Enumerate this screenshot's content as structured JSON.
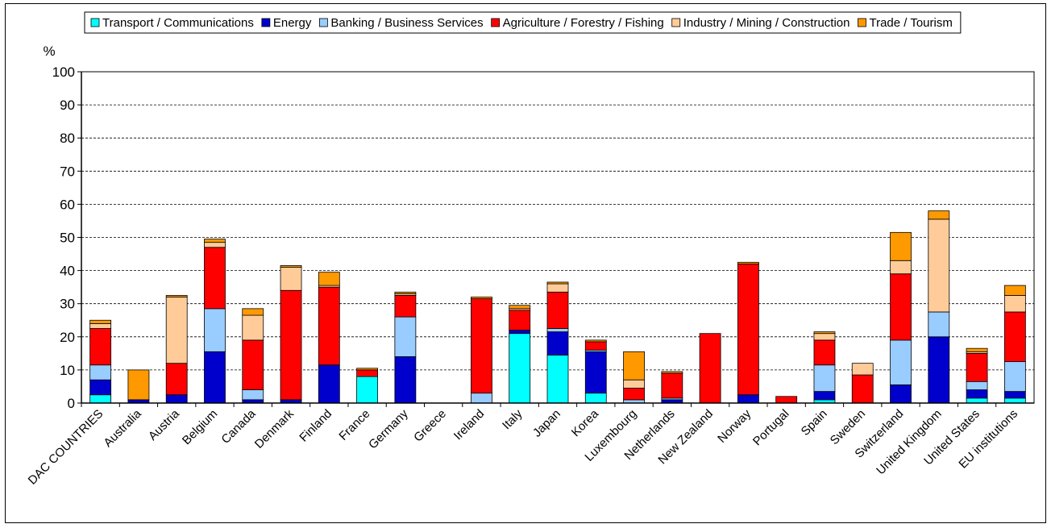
{
  "chart_data": {
    "type": "bar",
    "stacked": true,
    "title": "",
    "xlabel": "",
    "ylabel": "%",
    "ylim": [
      0,
      100
    ],
    "yticks": [
      0,
      10,
      20,
      30,
      40,
      50,
      60,
      70,
      80,
      90,
      100
    ],
    "grid": true,
    "legend_position": "top",
    "categories": [
      "DAC COUNTRIES",
      "Australia",
      "Austria",
      "Belgium",
      "Canada",
      "Denmark",
      "Finland",
      "France",
      "Germany",
      "Greece",
      "Ireland",
      "Italy",
      "Japan",
      "Korea",
      "Luxembourg",
      "Netherlands",
      "New Zealand",
      "Norway",
      "Portugal",
      "Spain",
      "Sweden",
      "Switzerland",
      "United Kingdom",
      "United States",
      "EU institutions"
    ],
    "series": [
      {
        "name": "Transport / Communications",
        "color": "#00FFFF",
        "values": [
          2.5,
          0,
          0,
          0,
          0,
          0,
          0,
          8,
          0,
          0,
          0,
          21,
          14.5,
          3,
          0,
          0,
          0,
          0,
          0,
          1,
          0,
          0,
          0,
          1.5,
          1.5
        ]
      },
      {
        "name": "Energy",
        "color": "#0000CC",
        "values": [
          4.5,
          1,
          2.5,
          15.5,
          1,
          1,
          11.5,
          0,
          14,
          0,
          0,
          1,
          7,
          12.5,
          0,
          1,
          0,
          2.5,
          0,
          2.5,
          0,
          5.5,
          20,
          2.5,
          2
        ]
      },
      {
        "name": "Banking / Business Services",
        "color": "#99CCFF",
        "values": [
          4.5,
          0,
          0,
          13,
          3,
          0,
          0,
          0,
          12,
          0,
          3,
          0,
          1,
          0.5,
          1,
          0.5,
          0,
          0,
          0,
          8,
          0,
          13.5,
          7.5,
          2.5,
          9
        ]
      },
      {
        "name": "Agriculture / Forestry / Fishing",
        "color": "#FF0000",
        "values": [
          11,
          0,
          9.5,
          18.5,
          15,
          33,
          23.5,
          2,
          6.5,
          0,
          28.5,
          6,
          11,
          2.5,
          3.5,
          7.5,
          21,
          39.5,
          2,
          7.5,
          8.5,
          20,
          0,
          8.5,
          15
        ]
      },
      {
        "name": "Industry / Mining / Construction",
        "color": "#FFCC99",
        "values": [
          1.5,
          0,
          20,
          1.5,
          7.5,
          7,
          0.5,
          0,
          0.5,
          0,
          0,
          0.5,
          2.5,
          0,
          2.5,
          0,
          0,
          0,
          0,
          2,
          3.5,
          4,
          28,
          0.5,
          5
        ]
      },
      {
        "name": "Trade / Tourism",
        "color": "#FF9900",
        "values": [
          1,
          9,
          0.5,
          1,
          2,
          0.5,
          4,
          0.5,
          0.5,
          0,
          0.5,
          1,
          0.5,
          0.5,
          8.5,
          0.5,
          0,
          0.5,
          0,
          0.5,
          0,
          8.5,
          2.5,
          1,
          3
        ]
      }
    ]
  }
}
